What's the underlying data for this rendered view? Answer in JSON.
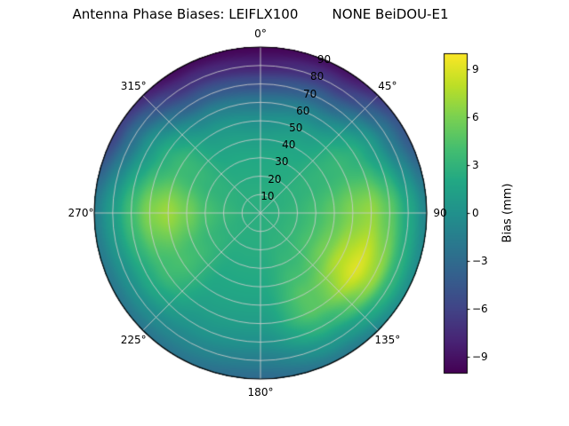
{
  "chart_data": {
    "type": "heatmap",
    "projection": "polar",
    "title": "Antenna Phase Biases: LEIFLX100        NONE BeiDOU-E1",
    "colormap": "viridis",
    "units": "mm",
    "vmin": -10,
    "vmax": 10,
    "grid": true,
    "azimuth_ticks": [
      {
        "angle": 0,
        "label": "0°"
      },
      {
        "angle": 45,
        "label": "45°"
      },
      {
        "angle": 90,
        "label": "90"
      },
      {
        "angle": 135,
        "label": "135°"
      },
      {
        "angle": 180,
        "label": "180°"
      },
      {
        "angle": 225,
        "label": "225°"
      },
      {
        "angle": 270,
        "label": "270°"
      },
      {
        "angle": 315,
        "label": "315°"
      }
    ],
    "radial_ticks": [
      {
        "radius": 90,
        "label": "90"
      },
      {
        "radius": 80,
        "label": "80"
      },
      {
        "radius": 70,
        "label": "70"
      },
      {
        "radius": 60,
        "label": "60"
      },
      {
        "radius": 50,
        "label": "50"
      },
      {
        "radius": 40,
        "label": "40"
      },
      {
        "radius": 30,
        "label": "30"
      },
      {
        "radius": 20,
        "label": "20"
      },
      {
        "radius": 10,
        "label": "10"
      }
    ],
    "rlabel_angle_deg": 22.5,
    "azimuth_grid_deg": [
      0,
      30,
      60,
      90,
      120,
      150,
      180,
      210,
      240,
      270,
      300,
      330
    ],
    "zenith_grid_deg": [
      0,
      10,
      20,
      30,
      40,
      50,
      60,
      70,
      80,
      90
    ],
    "values_mm": [
      [
        2.5,
        2.5,
        2.2,
        2.0,
        1.2,
        0.0,
        -2.0,
        -5.0,
        -8.0,
        -9.8
      ],
      [
        2.5,
        2.5,
        2.3,
        2.2,
        1.8,
        1.0,
        -0.8,
        -3.5,
        -6.5,
        -9.0
      ],
      [
        2.5,
        2.6,
        2.8,
        3.0,
        3.2,
        3.4,
        2.8,
        1.0,
        -1.8,
        -4.5
      ],
      [
        2.5,
        2.8,
        3.2,
        4.0,
        5.0,
        6.2,
        6.8,
        5.0,
        2.0,
        -0.8
      ],
      [
        2.5,
        2.8,
        3.3,
        4.3,
        5.8,
        7.8,
        9.0,
        7.0,
        3.0,
        0.0
      ],
      [
        2.5,
        2.7,
        2.9,
        3.3,
        4.0,
        4.8,
        4.8,
        3.0,
        0.5,
        -1.8
      ],
      [
        2.5,
        2.5,
        2.4,
        2.2,
        2.0,
        1.6,
        1.0,
        0.0,
        -1.5,
        -3.0
      ],
      [
        2.5,
        2.5,
        2.4,
        2.2,
        2.0,
        1.7,
        1.2,
        0.4,
        -0.8,
        -2.2
      ],
      [
        2.5,
        2.6,
        2.8,
        3.2,
        3.8,
        4.2,
        3.8,
        2.2,
        0.0,
        -2.0
      ],
      [
        2.5,
        2.8,
        3.3,
        4.2,
        5.8,
        7.0,
        6.2,
        3.8,
        1.0,
        -1.5
      ],
      [
        2.5,
        2.6,
        2.8,
        3.0,
        3.4,
        3.6,
        2.6,
        0.5,
        -2.5,
        -6.0
      ],
      [
        2.5,
        2.5,
        2.3,
        2.1,
        1.6,
        0.8,
        -1.0,
        -4.0,
        -7.0,
        -9.4
      ]
    ],
    "colorbar": {
      "label": "Bias (mm)",
      "ticks": [
        {
          "value": 9,
          "label": "9"
        },
        {
          "value": 6,
          "label": "6"
        },
        {
          "value": 3,
          "label": "3"
        },
        {
          "value": 0,
          "label": "0"
        },
        {
          "value": -3,
          "label": "−3"
        },
        {
          "value": -6,
          "label": "−6"
        },
        {
          "value": -9,
          "label": "−9"
        }
      ]
    }
  }
}
